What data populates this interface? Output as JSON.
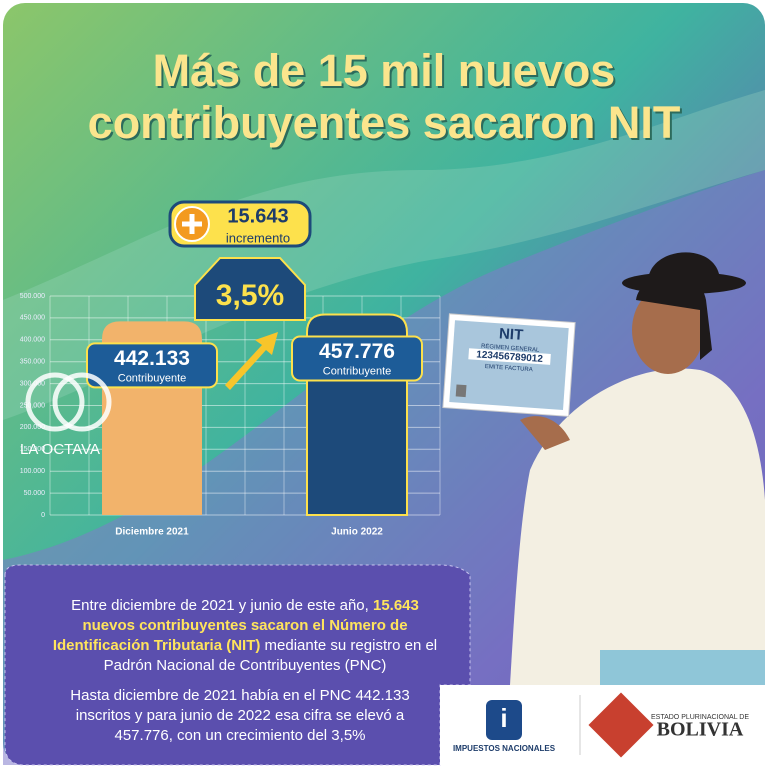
{
  "chart_data": {
    "type": "bar",
    "title": "Más de 15 mil nuevos contribuyentes sacaron NIT",
    "categories": [
      "Diciembre 2021",
      "Junio 2022"
    ],
    "values": [
      442133,
      457776
    ],
    "value_labels": [
      "442.133",
      "457.776"
    ],
    "value_caption": "Contribuyente",
    "colors": [
      "#f2b36b",
      "#1d4a7a"
    ],
    "ylim": [
      0,
      500000
    ],
    "yticks": [
      0,
      {
        "value": 50000,
        "label": "50.000"
      },
      {
        "value": 100000,
        "label": "100.000"
      },
      {
        "value": 150000,
        "label": "150.000"
      },
      {
        "value": 200000,
        "label": "200.000"
      },
      {
        "value": 250000,
        "label": "250.000"
      },
      {
        "value": 300000,
        "label": "300.000"
      },
      {
        "value": 350000,
        "label": "350.000"
      },
      {
        "value": 400000,
        "label": "400.000"
      },
      {
        "value": 450000,
        "label": "450.000"
      },
      {
        "value": 500000,
        "label": "500.000"
      }
    ],
    "grid": true,
    "annotations": {
      "increase": "15.643",
      "increase_label": "incremento",
      "growth": "3,5%"
    }
  },
  "nit_card": {
    "title": "NIT",
    "regime": "RÉGIMEN GENERAL",
    "number": "123456789012",
    "invoice": "EMITE FACTURA"
  },
  "watermark": "LA OCTAVA",
  "paragraph_1": [
    "Entre diciembre de 2021 y junio de este año,",
    "15.643 nuevos contribuyentes sacaron el Número de Identificación Tributaria (NIT)",
    "mediante su registro en el Padrón Nacional de Contribuyentes (PNC)"
  ],
  "paragraph_2": "Hasta diciembre de 2021 había en el PNC 442.133 inscritos y para junio de 2022 esa cifra se elevó a 457.776, con un crecimiento del 3,5%",
  "logos": {
    "agency": "IMPUESTOS NACIONALES",
    "state": "ESTADO PLURINACIONAL DE",
    "country": "BOLIVIA"
  }
}
